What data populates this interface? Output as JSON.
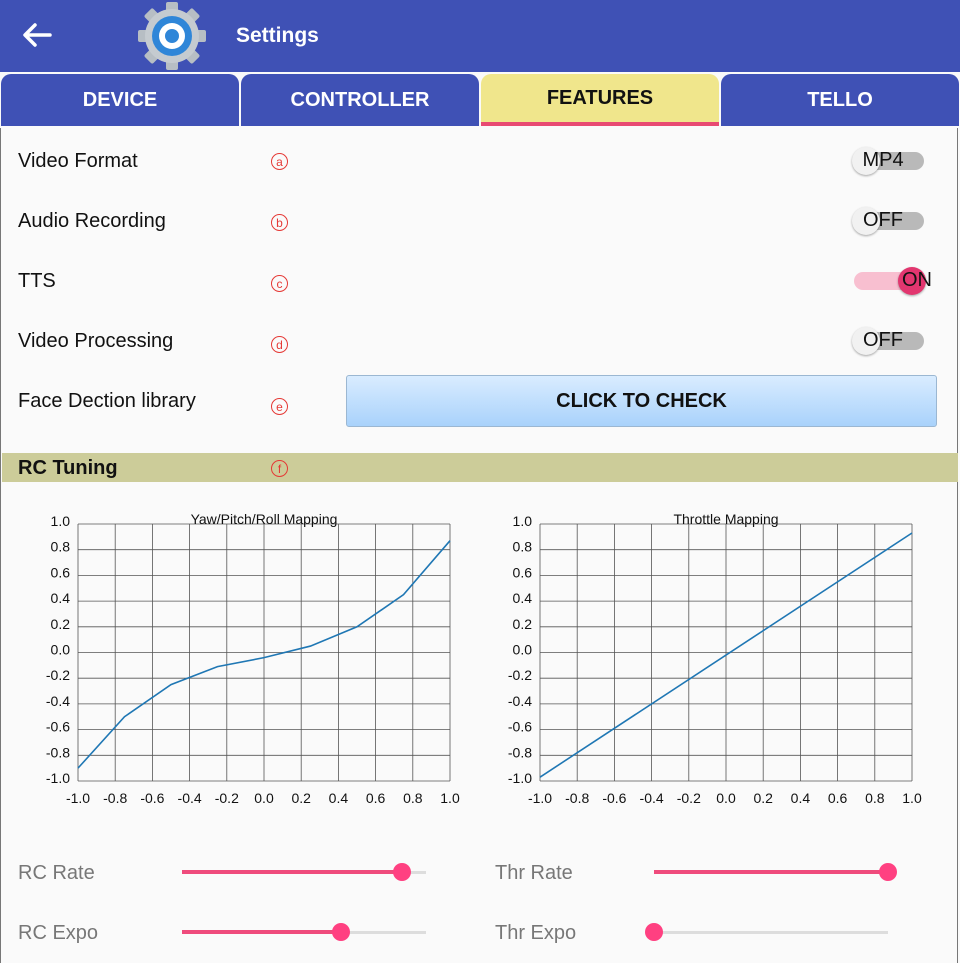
{
  "appbar": {
    "title": "Settings",
    "back_icon": "arrow-left-icon",
    "app_icon": "gear-icon",
    "color": "#3f51b5"
  },
  "tabs": [
    {
      "label": "DEVICE"
    },
    {
      "label": "CONTROLLER"
    },
    {
      "label": "FEATURES",
      "active": true
    },
    {
      "label": "TELLO"
    }
  ],
  "features": [
    {
      "label": "Video Format",
      "marker": "a",
      "switch_text": "MP4",
      "on": false
    },
    {
      "label": "Audio Recording",
      "marker": "b",
      "switch_text": "OFF",
      "on": false
    },
    {
      "label": "TTS",
      "marker": "c",
      "switch_text": "ON",
      "on": true
    },
    {
      "label": "Video Processing",
      "marker": "d",
      "switch_text": "OFF",
      "on": false
    },
    {
      "label": "Face Dection library",
      "marker": "e",
      "button_label": "CLICK TO CHECK"
    }
  ],
  "rc_tuning": {
    "title": "RC Tuning",
    "marker": "f"
  },
  "chart_data": [
    {
      "type": "line",
      "title": "Yaw/Pitch/Roll Mapping",
      "xlim": [
        -1.0,
        1.0
      ],
      "ylim": [
        -1.0,
        1.0
      ],
      "xticks": [
        "-1.0",
        "-0.8",
        "-0.6",
        "-0.4",
        "-0.2",
        "0.0",
        "0.2",
        "0.4",
        "0.6",
        "0.8",
        "1.0"
      ],
      "yticks": [
        "1.0",
        "0.8",
        "0.6",
        "0.4",
        "0.2",
        "0.0",
        "-0.2",
        "-0.4",
        "-0.6",
        "-0.8",
        "-1.0"
      ],
      "grid": true,
      "color": "#1f77b4",
      "x": [
        -1.0,
        -0.75,
        -0.5,
        -0.25,
        0.0,
        0.25,
        0.5,
        0.75,
        1.0
      ],
      "y": [
        -0.9,
        -0.5,
        -0.25,
        -0.11,
        -0.04,
        0.05,
        0.2,
        0.45,
        0.87
      ]
    },
    {
      "type": "line",
      "title": "Throttle Mapping",
      "xlim": [
        -1.0,
        1.0
      ],
      "ylim": [
        -1.0,
        1.0
      ],
      "xticks": [
        "-1.0",
        "-0.8",
        "-0.6",
        "-0.4",
        "-0.2",
        "0.0",
        "0.2",
        "0.4",
        "0.6",
        "0.8",
        "1.0"
      ],
      "yticks": [
        "1.0",
        "0.8",
        "0.6",
        "0.4",
        "0.2",
        "0.0",
        "-0.2",
        "-0.4",
        "-0.6",
        "-0.8",
        "-1.0"
      ],
      "grid": true,
      "color": "#1f77b4",
      "x": [
        -1.0,
        1.0
      ],
      "y": [
        -0.97,
        0.93
      ]
    }
  ],
  "sliders": [
    {
      "label": "RC Rate",
      "value": 0.9
    },
    {
      "label": "Thr Rate",
      "value": 1.0
    },
    {
      "label": "RC Expo",
      "value": 0.65
    },
    {
      "label": "Thr Expo",
      "value": 0.0
    }
  ]
}
